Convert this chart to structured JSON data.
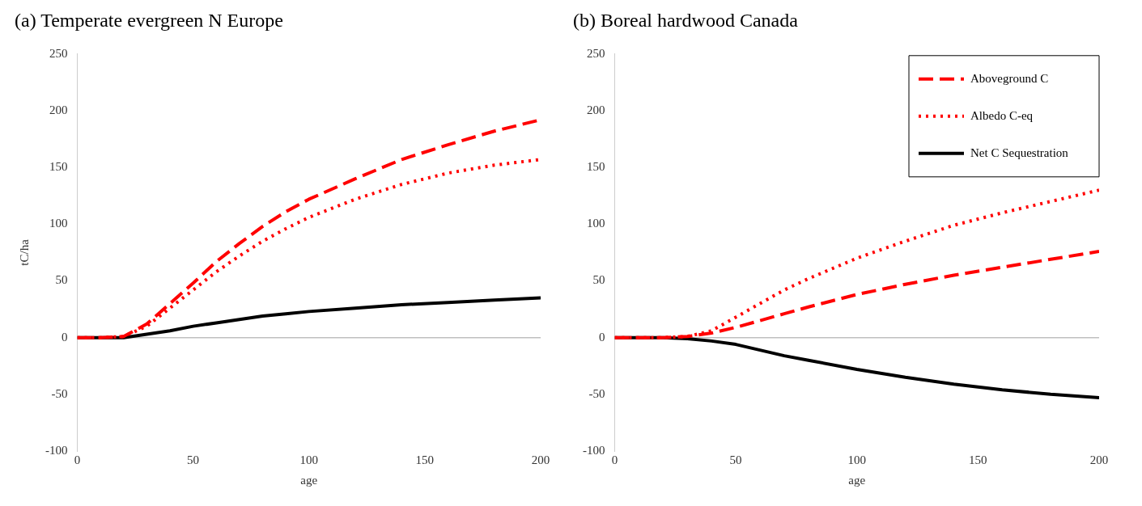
{
  "chart_data": [
    {
      "type": "line",
      "title": "(a) Temperate evergreen N Europe",
      "xlabel": "age",
      "ylabel": "tC/ha",
      "xlim": [
        0,
        200
      ],
      "xticks": [
        0,
        50,
        100,
        150,
        200
      ],
      "ylim": [
        -100,
        250
      ],
      "yticks": [
        -100,
        -50,
        0,
        50,
        100,
        150,
        200,
        250
      ],
      "grid": false,
      "legend": false,
      "marker": "none",
      "ref_lines": [
        {
          "axis": "y",
          "value": 0,
          "color": "#bfbfbf"
        }
      ],
      "series": [
        {
          "color": "#ff0000",
          "line_style": "dashed",
          "x": [
            0,
            10,
            20,
            30,
            40,
            50,
            60,
            70,
            80,
            90,
            100,
            120,
            140,
            160,
            180,
            200
          ],
          "values": [
            0,
            0,
            1,
            12,
            30,
            48,
            67,
            83,
            98,
            111,
            122,
            140,
            157,
            170,
            182,
            192
          ]
        },
        {
          "color": "#ff0000",
          "line_style": "dotted",
          "x": [
            0,
            10,
            20,
            30,
            40,
            50,
            60,
            70,
            80,
            90,
            100,
            120,
            140,
            160,
            180,
            200
          ],
          "values": [
            0,
            0,
            1,
            10,
            26,
            42,
            58,
            72,
            85,
            96,
            106,
            122,
            135,
            145,
            152,
            157
          ]
        },
        {
          "color": "#000000",
          "line_style": "solid",
          "x": [
            0,
            10,
            20,
            30,
            40,
            50,
            60,
            70,
            80,
            90,
            100,
            120,
            140,
            160,
            180,
            200
          ],
          "values": [
            0,
            0,
            0,
            3,
            6,
            10,
            13,
            16,
            19,
            21,
            23,
            26,
            29,
            31,
            33,
            35
          ]
        }
      ]
    },
    {
      "type": "line",
      "title": "(b) Boreal hardwood Canada",
      "xlabel": "age",
      "xlim": [
        0,
        200
      ],
      "xticks": [
        0,
        50,
        100,
        150,
        200
      ],
      "ylim": [
        -100,
        250
      ],
      "yticks": [
        -100,
        -50,
        0,
        50,
        100,
        150,
        200,
        250
      ],
      "grid": false,
      "legend": "top right",
      "marker": "none",
      "ref_lines": [
        {
          "axis": "y",
          "value": 0,
          "color": "#bfbfbf"
        }
      ],
      "series": [
        {
          "name": "Aboveground C",
          "color": "#ff0000",
          "line_style": "dashed",
          "x": [
            0,
            20,
            30,
            40,
            50,
            60,
            70,
            80,
            100,
            120,
            140,
            160,
            180,
            200
          ],
          "values": [
            0,
            0,
            1,
            4,
            9,
            15,
            21,
            27,
            38,
            47,
            55,
            62,
            69,
            76
          ]
        },
        {
          "name": "Albedo C-eq",
          "color": "#ff0000",
          "line_style": "dotted",
          "x": [
            0,
            20,
            30,
            40,
            50,
            60,
            70,
            80,
            100,
            120,
            140,
            160,
            180,
            200
          ],
          "values": [
            0,
            0,
            1,
            6,
            18,
            30,
            42,
            52,
            70,
            85,
            99,
            110,
            120,
            130
          ]
        },
        {
          "name": "Net C Sequestration",
          "color": "#000000",
          "line_style": "solid",
          "x": [
            0,
            20,
            30,
            40,
            50,
            60,
            70,
            80,
            100,
            120,
            140,
            160,
            180,
            200
          ],
          "values": [
            0,
            0,
            -1,
            -3,
            -6,
            -11,
            -16,
            -20,
            -28,
            -35,
            -41,
            -46,
            -50,
            -53
          ]
        }
      ]
    }
  ]
}
